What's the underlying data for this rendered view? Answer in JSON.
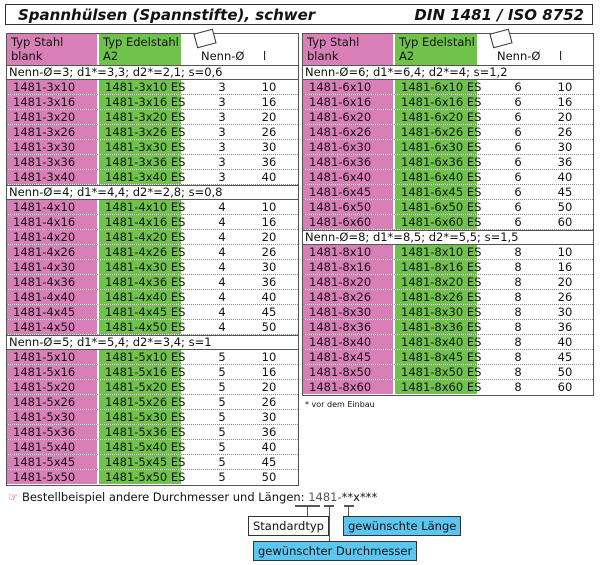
{
  "title": {
    "left": "Spannhülsen (Spannstifte), schwer",
    "right": "DIN 1481 / ISO 8752"
  },
  "header": {
    "stahl1": "Typ Stahl",
    "stahl2": "blank",
    "edel1": "Typ Edelstahl",
    "edel2": "A2",
    "nenn": "Nenn-Ø",
    "l": "l"
  },
  "colors": {
    "stahl": "#d97fb8",
    "edelstahl": "#6fc24a",
    "highlight": "#5cc6ef"
  },
  "left_groups": [
    {
      "label": "Nenn-Ø=3; d1*=3,3; d2*=2,1; s=0,6",
      "d": "3",
      "lengths": [
        "10",
        "16",
        "20",
        "26",
        "30",
        "36",
        "40"
      ]
    },
    {
      "label": "Nenn-Ø=4; d1*=4,4; d2*=2,8; s=0,8",
      "d": "4",
      "lengths": [
        "10",
        "16",
        "20",
        "26",
        "30",
        "36",
        "40",
        "45",
        "50"
      ]
    },
    {
      "label": "Nenn-Ø=5; d1*=5,4; d2*=3,4; s=1",
      "d": "5",
      "lengths": [
        "10",
        "16",
        "20",
        "26",
        "30",
        "36",
        "40",
        "45",
        "50"
      ]
    }
  ],
  "right_groups": [
    {
      "label": "Nenn-Ø=6; d1*=6,4; d2*=4; s=1,2",
      "d": "6",
      "lengths": [
        "10",
        "16",
        "20",
        "26",
        "30",
        "36",
        "40",
        "45",
        "50",
        "60"
      ]
    },
    {
      "label": "Nenn-Ø=8; d1*=8,5; d2*=5,5; s=1,5",
      "d": "8",
      "lengths": [
        "10",
        "16",
        "20",
        "26",
        "30",
        "36",
        "40",
        "45",
        "50",
        "60"
      ]
    }
  ],
  "footnote": "* vor dem Einbau",
  "order": {
    "icon": "pointing-hand-icon",
    "text": "Bestellbeispiel andere Durchmesser und Längen:",
    "code1": "1481-",
    "code2": "**x***",
    "standard": "Standardtyp",
    "length": "gewünschte Länge",
    "diameter": "gewünschter Durchmesser"
  }
}
